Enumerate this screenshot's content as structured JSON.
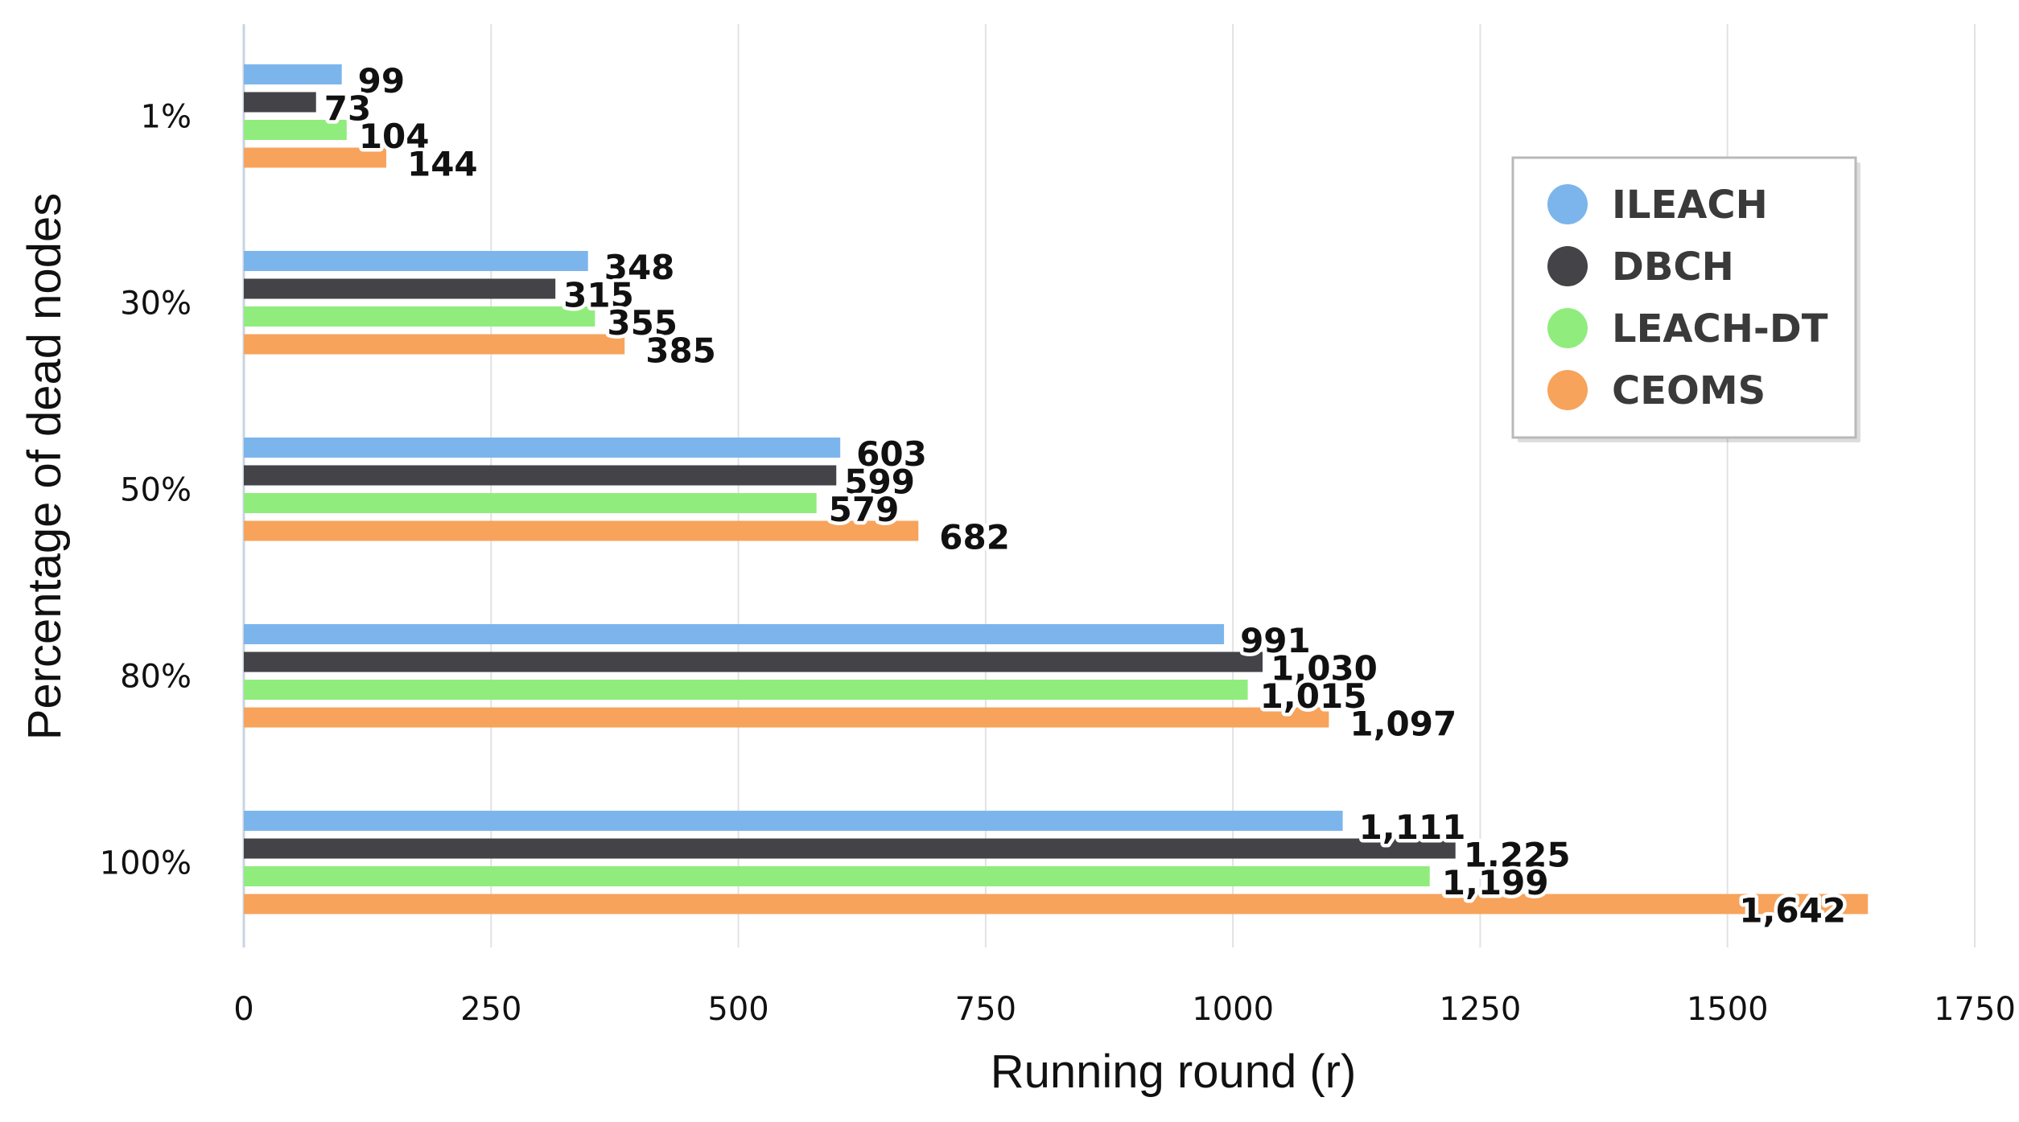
{
  "chart_data": {
    "type": "bar",
    "orientation": "horizontal",
    "categories": [
      "1%",
      "30%",
      "50%",
      "80%",
      "100%"
    ],
    "series": [
      {
        "name": "ILEACH",
        "color": "#7cb5ec",
        "values": [
          99,
          348,
          603,
          991,
          1111
        ],
        "labels": [
          "99",
          "348",
          "603",
          "991",
          "1,111"
        ]
      },
      {
        "name": "DBCH",
        "color": "#434348",
        "values": [
          73,
          315,
          599,
          1030,
          1225
        ],
        "labels": [
          "73",
          "315",
          "599",
          "1,030",
          "1,225"
        ]
      },
      {
        "name": "LEACH-DT",
        "color": "#90ed7d",
        "values": [
          104,
          355,
          579,
          1015,
          1199
        ],
        "labels": [
          "104",
          "355",
          "579",
          "1,015",
          "1,199"
        ]
      },
      {
        "name": "CEOMS",
        "color": "#f7a35c",
        "values": [
          144,
          385,
          682,
          1097,
          1642
        ],
        "labels": [
          "144",
          "385",
          "682",
          "1,097",
          "1,642"
        ]
      }
    ],
    "xlabel": "Running round (r)",
    "ylabel": "Percentage of dead nodes",
    "xlim": [
      0,
      1750
    ],
    "xticks": [
      0,
      250,
      500,
      750,
      1000,
      1250,
      1500,
      1750
    ],
    "xtick_labels": [
      "0",
      "250",
      "500",
      "750",
      "1000",
      "1250",
      "1500",
      "1750"
    ],
    "grid": true,
    "legend_position": "right"
  }
}
